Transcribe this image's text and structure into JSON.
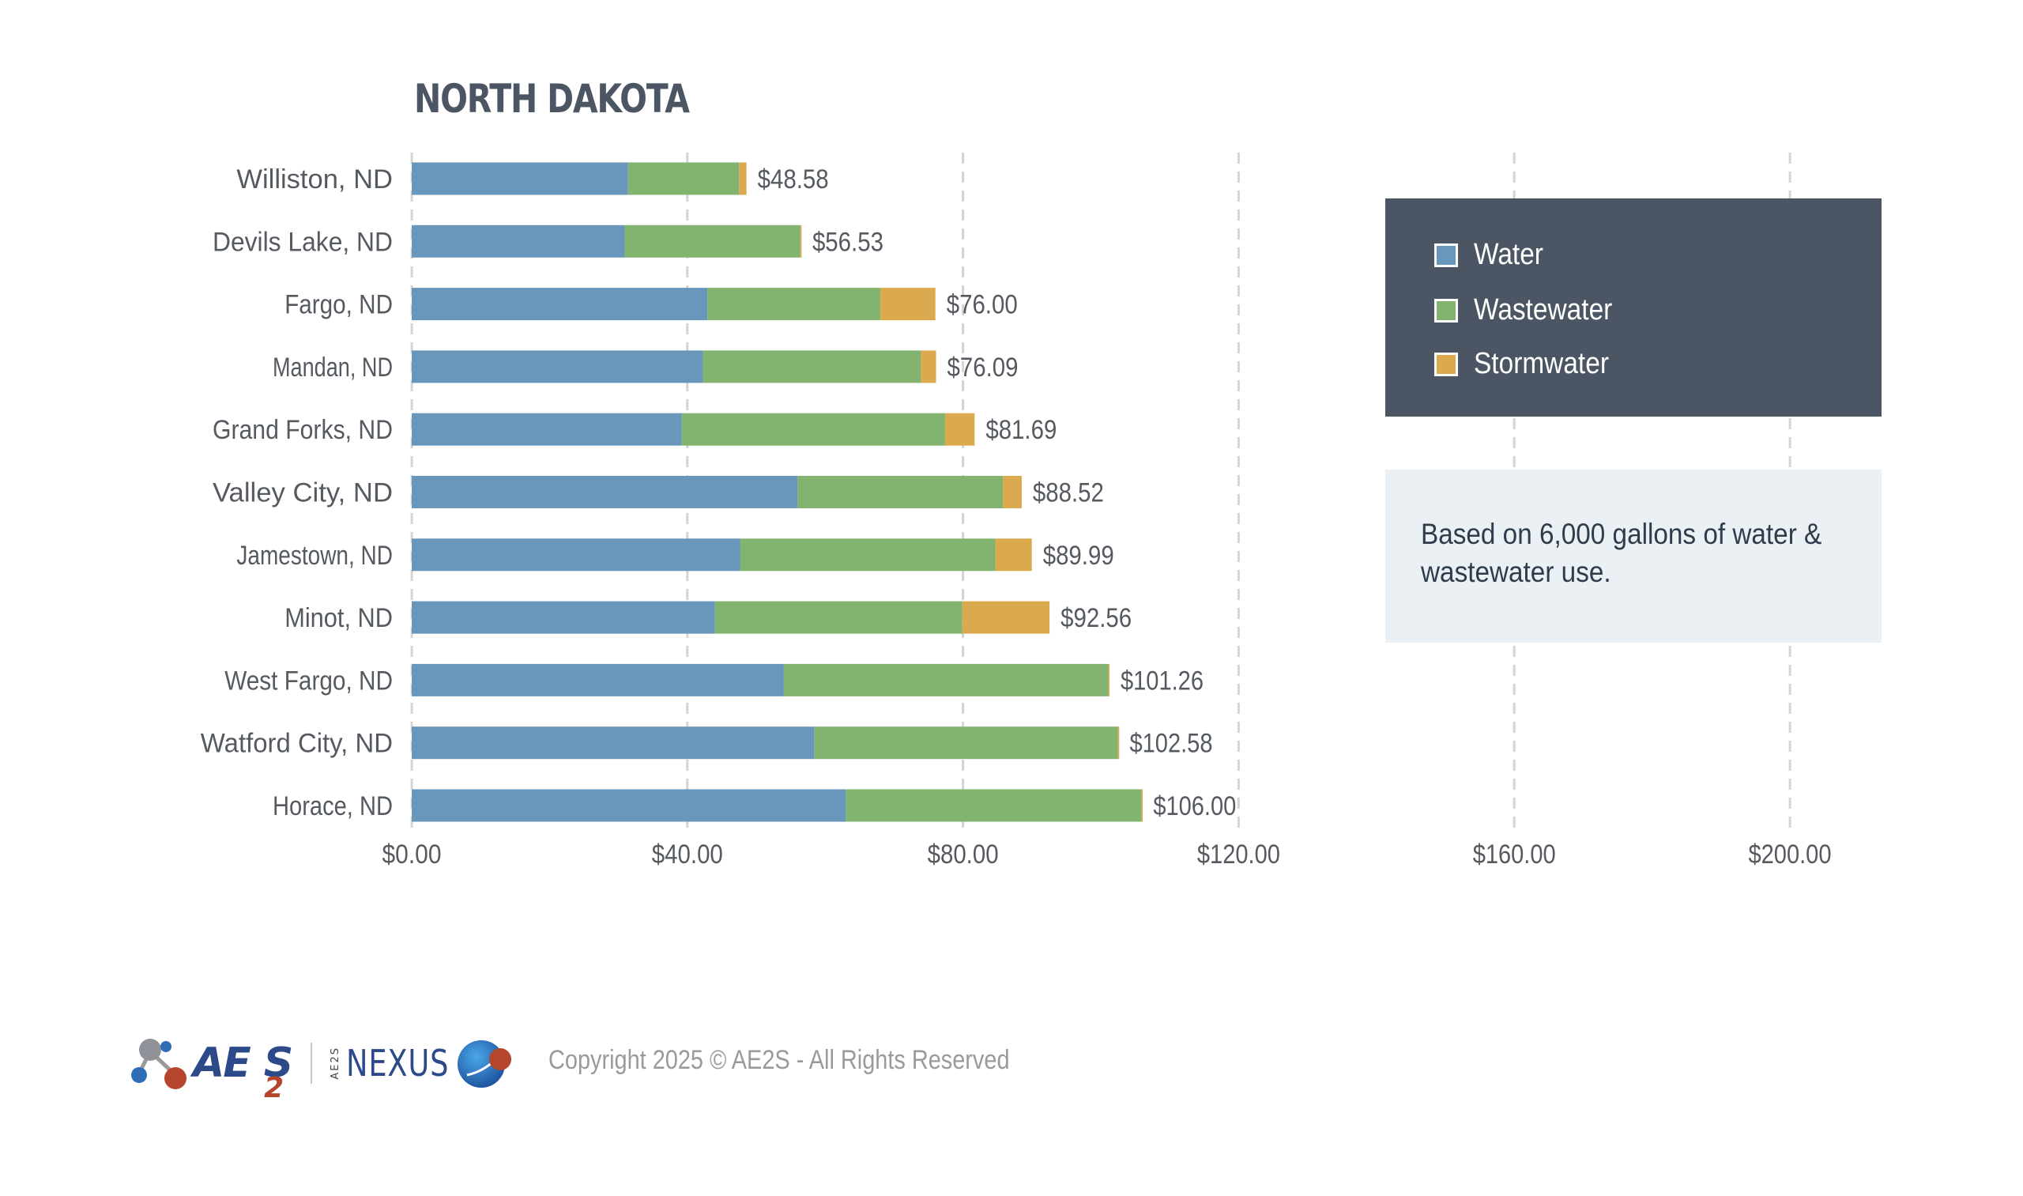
{
  "chart_data": {
    "type": "bar",
    "orientation": "horizontal",
    "stacked": true,
    "title": "NORTH DAKOTA",
    "xlabel": "",
    "ylabel": "",
    "xlim": [
      0,
      200
    ],
    "x_ticks": [
      0,
      40,
      80,
      120,
      160,
      200
    ],
    "x_tick_labels": [
      "$0.00",
      "$40.00",
      "$80.00",
      "$120.00",
      "$160.00",
      "$200.00"
    ],
    "grid": "vertical-dashed",
    "legend_position": "right",
    "categories": [
      "Williston, ND",
      "Devils Lake, ND",
      "Fargo, ND",
      "Mandan, ND",
      "Grand Forks, ND",
      "Valley City, ND",
      "Jamestown, ND",
      "Minot, ND",
      "West Fargo, ND",
      "Watford City, ND",
      "Horace, ND"
    ],
    "series": [
      {
        "name": "Water",
        "color": "#6897bb",
        "values": [
          31.4,
          30.9,
          42.9,
          42.3,
          39.2,
          56.0,
          47.7,
          44.0,
          54.0,
          58.4,
          63.0
        ]
      },
      {
        "name": "Wastewater",
        "color": "#82b46f",
        "values": [
          16.1,
          25.5,
          25.1,
          31.6,
          38.2,
          29.8,
          37.0,
          35.9,
          47.1,
          44.1,
          42.9
        ]
      },
      {
        "name": "Stormwater",
        "color": "#dcaa4e",
        "values": [
          1.08,
          0.13,
          8.0,
          2.19,
          4.29,
          2.72,
          5.29,
          12.66,
          0.16,
          0.08,
          0.1
        ]
      }
    ],
    "totals": [
      48.58,
      56.53,
      76.0,
      76.09,
      81.69,
      88.52,
      89.99,
      92.56,
      101.26,
      102.58,
      106.0
    ],
    "total_labels": [
      "$48.58",
      "$56.53",
      "$76.00",
      "$76.09",
      "$81.69",
      "$88.52",
      "$89.99",
      "$92.56",
      "$101.26",
      "$102.58",
      "$106.00"
    ]
  },
  "legend": {
    "items": [
      {
        "label": "Water",
        "color": "#6897bb"
      },
      {
        "label": "Wastewater",
        "color": "#82b46f"
      },
      {
        "label": "Stormwater",
        "color": "#dcaa4e"
      }
    ]
  },
  "note": {
    "text": "Based on 6,000 gallons of water & wastewater use."
  },
  "footer": {
    "logo_main": "AE",
    "logo_sub": "2",
    "logo_s": "S",
    "nexus_small": "AE2S",
    "nexus": "NEXUS",
    "copyright": "Copyright 2025 © AE2S - All Rights Reserved"
  },
  "colors": {
    "title": "#4b5563",
    "legend_bg": "#4b5563",
    "note_bg": "#ebf0f5"
  }
}
